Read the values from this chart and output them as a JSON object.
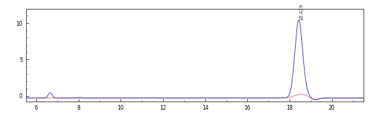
{
  "xlim": [
    5.5,
    21.5
  ],
  "ylim": [
    -0.8,
    12.0
  ],
  "yticks": [
    0,
    5,
    10
  ],
  "xticks": [
    6,
    8,
    10,
    12,
    14,
    16,
    18,
    20
  ],
  "background_color": "#ffffff",
  "plot_bg_color": "#ffffff",
  "line_color_blue": "#3333aa",
  "line_color_pink": "#cc5577",
  "peak_label": "18.429",
  "peak_x": 18.43,
  "peak_height": 10.0,
  "peak_sigma": 0.18,
  "small_peak_x": 6.65,
  "small_peak_amp": 0.75,
  "small_peak_sigma": 0.09,
  "baseline_y": -0.3,
  "label_fontsize": 5.0
}
